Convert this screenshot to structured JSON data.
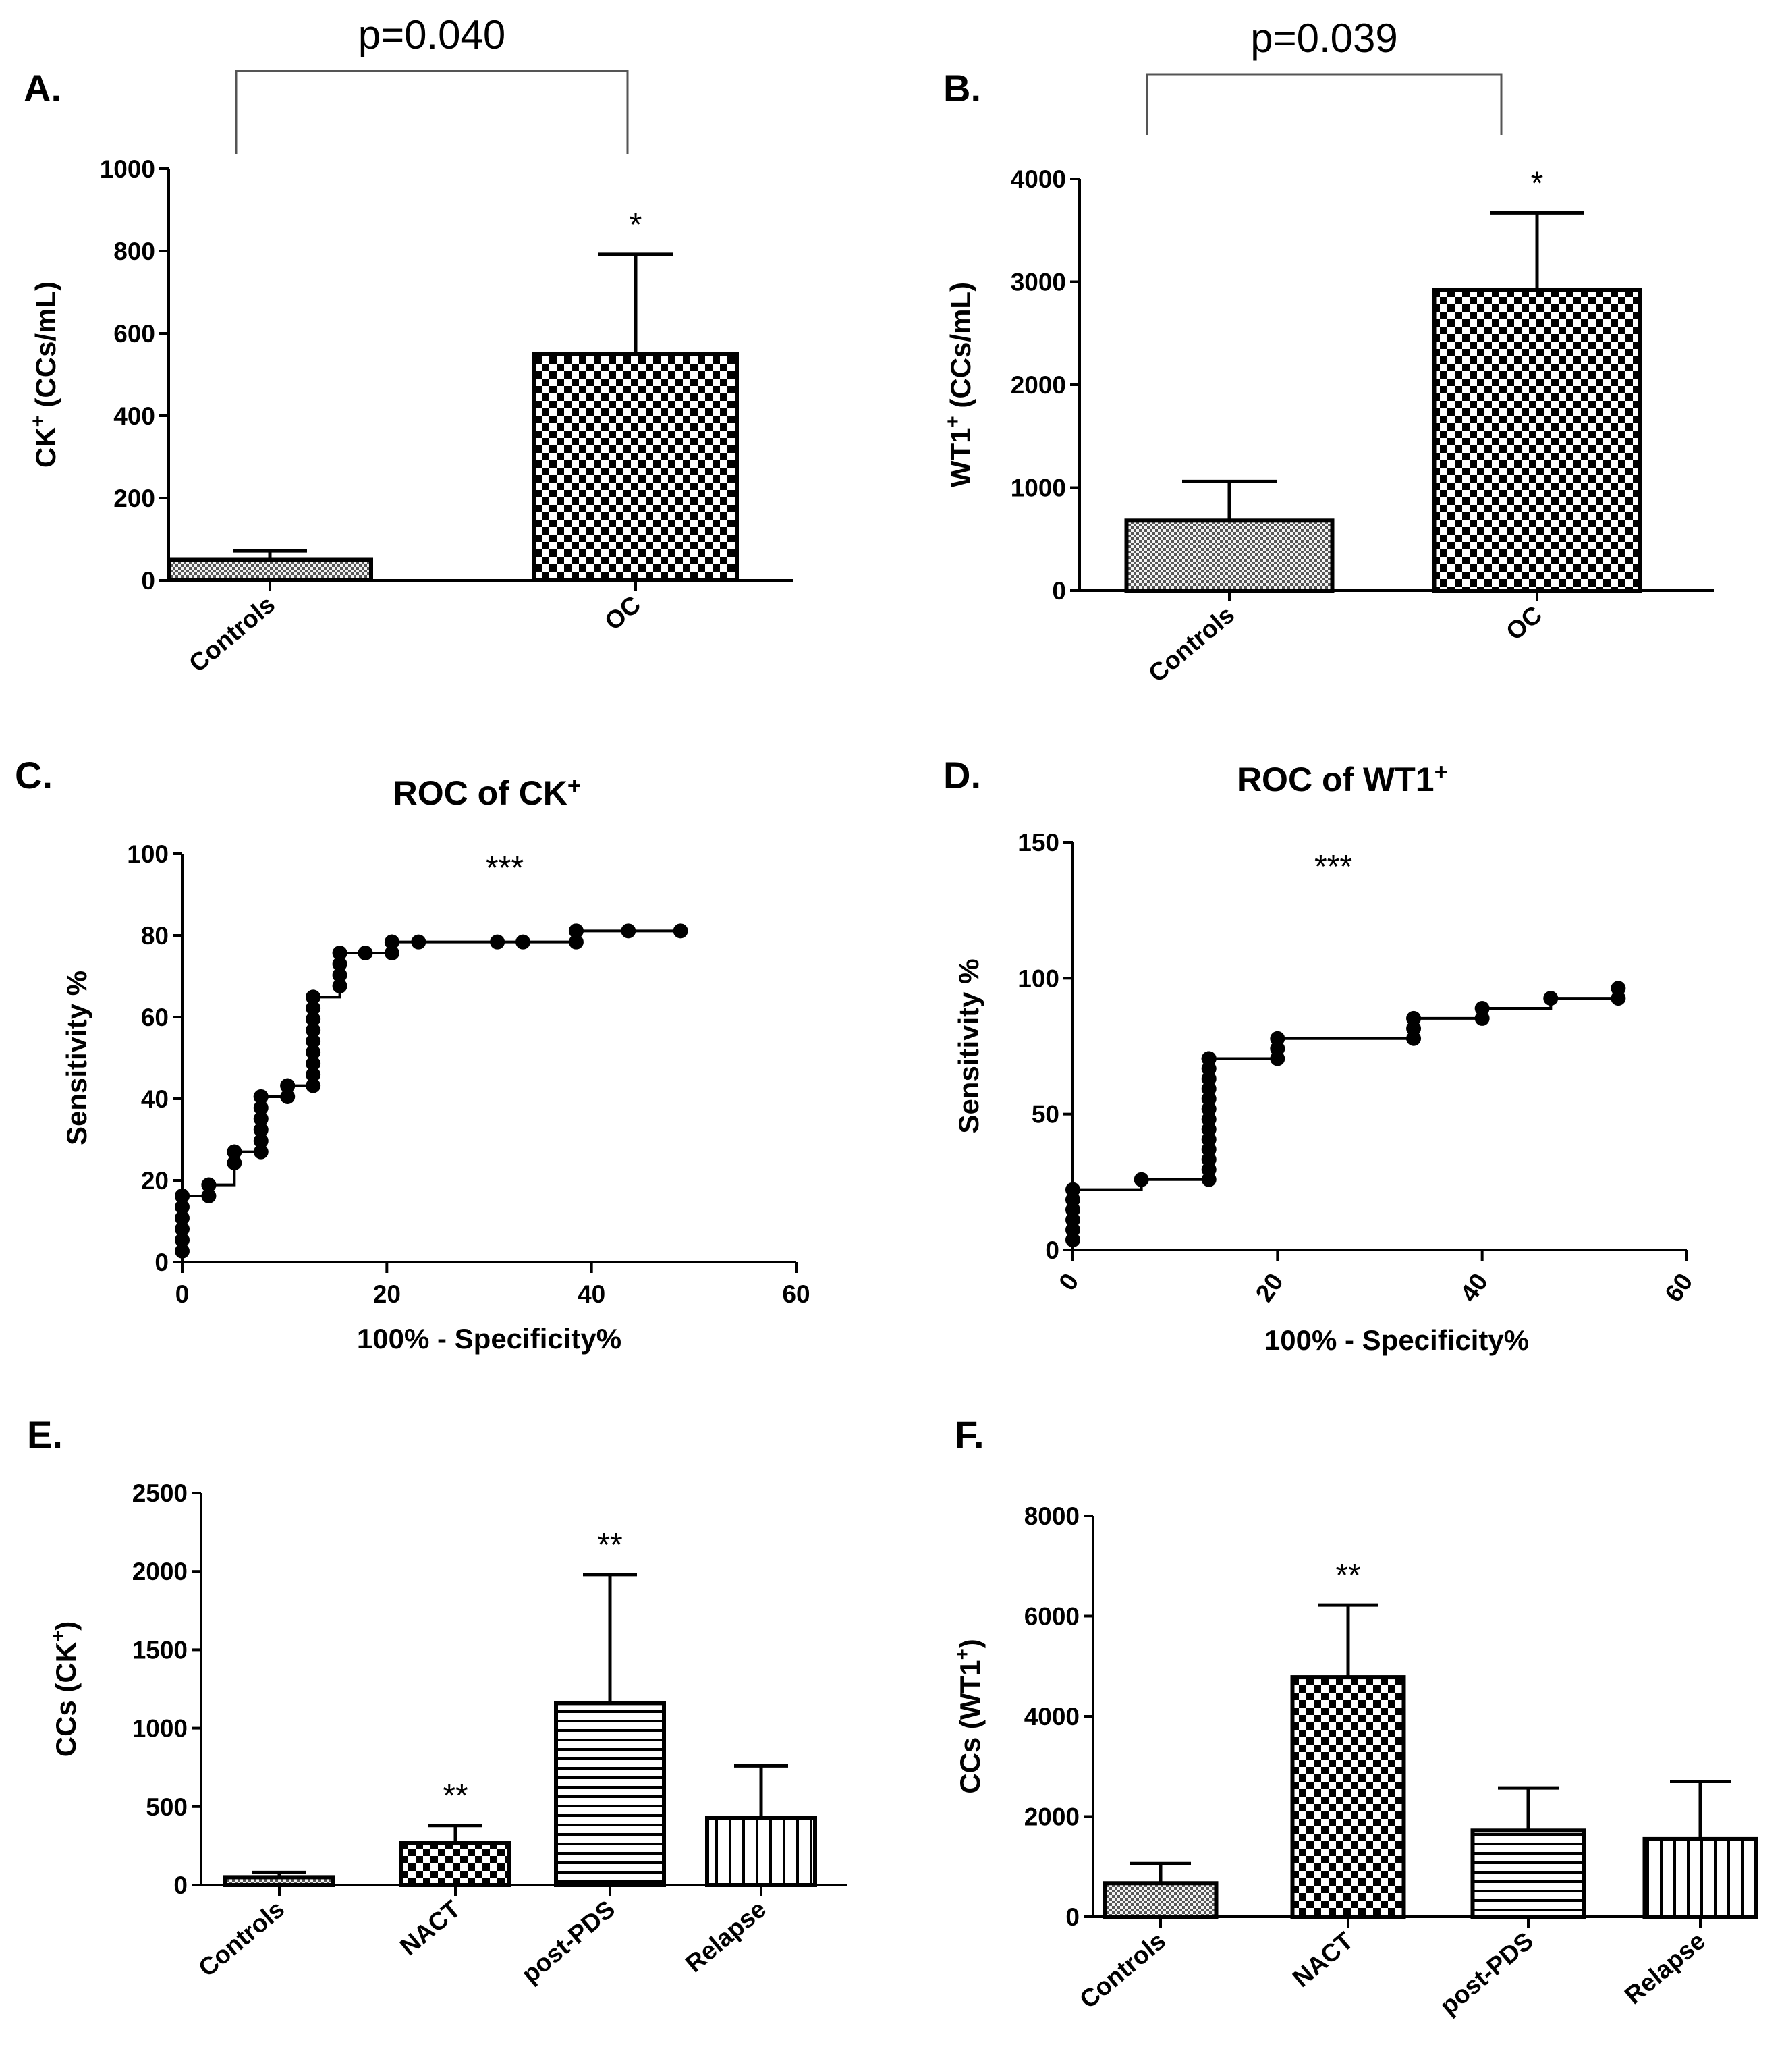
{
  "chart_data": [
    {
      "panel": "A.",
      "type": "bar",
      "categories": [
        "Controls",
        "OC"
      ],
      "values": [
        50,
        550
      ],
      "error_upper": [
        72,
        792
      ],
      "patterns": [
        "fine-check",
        "checker"
      ],
      "ylabel": "CK+ (CCs/mL)",
      "ylim": [
        0,
        1000
      ],
      "yticks": [
        "0",
        "200",
        "400",
        "600",
        "800",
        "1000"
      ],
      "annotations": {
        "p_value": "p=0.040",
        "stars": [
          "",
          "*"
        ]
      }
    },
    {
      "panel": "B.",
      "type": "bar",
      "categories": [
        "Controls",
        "OC"
      ],
      "values": [
        680,
        2920
      ],
      "error_upper": [
        1060,
        3670
      ],
      "patterns": [
        "fine-check",
        "checker"
      ],
      "ylabel": "WT1+ (CCs/mL)",
      "ylim": [
        0,
        4000
      ],
      "yticks": [
        "0",
        "1000",
        "2000",
        "3000",
        "4000"
      ],
      "annotations": {
        "p_value": "p=0.039",
        "stars": [
          "",
          "*"
        ]
      }
    },
    {
      "panel": "C.",
      "type": "line",
      "title": "ROC of CK+",
      "xlabel": "100%  - Specificity%",
      "ylabel": "Sensitivity %",
      "xlim": [
        0,
        60
      ],
      "ylim": [
        0,
        100
      ],
      "xticks": [
        "0",
        "20",
        "40",
        "60"
      ],
      "yticks": [
        "0",
        "20",
        "40",
        "60",
        "80",
        "100"
      ],
      "stars": "***",
      "x": [
        0,
        0,
        0,
        0,
        0,
        0,
        0,
        0,
        2.6,
        2.6,
        2.6,
        5.1,
        5.1,
        5.1,
        7.7,
        7.7,
        7.7,
        7.7,
        7.7,
        7.7,
        7.7,
        10.3,
        10.3,
        10.3,
        12.8,
        12.8,
        12.8,
        12.8,
        12.8,
        12.8,
        12.8,
        12.8,
        12.8,
        12.8,
        15.4,
        15.4,
        15.4,
        15.4,
        17.9,
        20.5,
        20.5,
        20.5,
        23.1,
        30.8,
        33.3,
        38.5,
        38.5,
        38.5,
        43.6,
        48.7
      ],
      "y": [
        2.7,
        5.4,
        8.1,
        10.8,
        13.5,
        16.2,
        16.2,
        16.2,
        16.2,
        18.9,
        18.9,
        24.3,
        27,
        27,
        27,
        29.7,
        32.4,
        35.1,
        37.8,
        40.5,
        40.5,
        40.5,
        43.2,
        43.2,
        43.2,
        45.9,
        48.6,
        51.4,
        54.1,
        56.8,
        59.5,
        62.2,
        64.9,
        64.9,
        67.6,
        70.3,
        73,
        75.7,
        75.7,
        75.7,
        78.4,
        78.4,
        78.4,
        78.4,
        78.4,
        78.4,
        81.1,
        81.1,
        81.1,
        81.1
      ]
    },
    {
      "panel": "D.",
      "type": "line",
      "title": "ROC of WT1+",
      "xlabel": "100%  - Specificity%",
      "ylabel": "Sensitivity %",
      "xlim": [
        0,
        60
      ],
      "ylim": [
        0,
        150
      ],
      "xticks": [
        "0",
        "20",
        "40",
        "60"
      ],
      "yticks": [
        "0",
        "50",
        "100",
        "150"
      ],
      "stars": "***",
      "x": [
        0,
        0,
        0,
        0,
        0,
        0,
        6.7,
        13.3,
        13.3,
        13.3,
        13.3,
        13.3,
        13.3,
        13.3,
        13.3,
        13.3,
        13.3,
        13.3,
        13.3,
        13.3,
        13.3,
        13.3,
        20,
        20,
        20,
        33.3,
        33.3,
        33.3,
        40,
        40,
        46.7,
        53.3,
        53.3
      ],
      "y": [
        3.7,
        7.4,
        11.1,
        14.8,
        18.5,
        22.2,
        25.9,
        25.9,
        29.6,
        33.3,
        37,
        40.7,
        44.4,
        48.1,
        51.9,
        55.6,
        59.3,
        63,
        66.7,
        70.4,
        70.4,
        70.4,
        70.4,
        74.1,
        77.8,
        77.8,
        81.5,
        85.2,
        85.2,
        88.9,
        92.6,
        92.6,
        96.3
      ]
    },
    {
      "panel": "E.",
      "type": "bar",
      "categories": [
        "Controls",
        "NACT",
        "post-PDS",
        "Relapse"
      ],
      "values": [
        50,
        270,
        1160,
        430
      ],
      "error_upper": [
        80,
        380,
        1980,
        760
      ],
      "patterns": [
        "fine-check",
        "checker",
        "horizontal",
        "vertical"
      ],
      "ylabel": "CCs (CK+)",
      "ylim": [
        0,
        2500
      ],
      "yticks": [
        "0",
        "500",
        "1000",
        "1500",
        "2000",
        "2500"
      ],
      "annotations": {
        "stars": [
          "",
          "**",
          "**",
          ""
        ]
      }
    },
    {
      "panel": "F.",
      "type": "bar",
      "categories": [
        "Controls",
        "NACT",
        "post-PDS",
        "Relapse"
      ],
      "values": [
        670,
        4780,
        1720,
        1550
      ],
      "error_upper": [
        1060,
        6220,
        2570,
        2700
      ],
      "patterns": [
        "fine-check",
        "checker",
        "horizontal",
        "vertical"
      ],
      "ylabel": "CCs (WT1+)",
      "ylim": [
        0,
        8000
      ],
      "yticks": [
        "0",
        "2000",
        "4000",
        "6000",
        "8000"
      ],
      "annotations": {
        "stars": [
          "",
          "**",
          "",
          ""
        ]
      }
    }
  ]
}
